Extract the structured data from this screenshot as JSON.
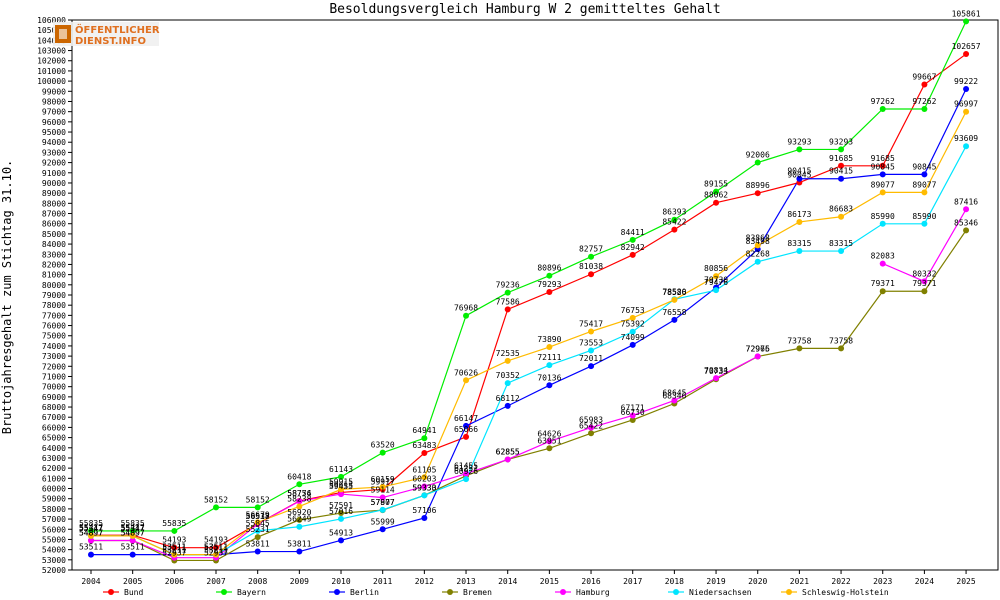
{
  "logo": {
    "line1": "ÖFFENTLICHER",
    "line2": "DIENST.INFO"
  },
  "chart_data": {
    "type": "line",
    "title": "Besoldungsvergleich Hamburg W 2 gemitteltes Gehalt",
    "xlabel": "",
    "ylabel": "Bruttojahresgehalt zum Stichtag 31.10.",
    "ylim": [
      52000,
      106000
    ],
    "ytick_step": 1000,
    "grid": false,
    "legend": "bottom",
    "categories": [
      "2004",
      "2005",
      "2006",
      "2007",
      "2008",
      "2009",
      "2010",
      "2011",
      "2012",
      "2013",
      "2014",
      "2015",
      "2016",
      "2017",
      "2018",
      "2019",
      "2020",
      "2021",
      "2022",
      "2023",
      "2024",
      "2025"
    ],
    "series": [
      {
        "name": "Bund",
        "color": "#ff0000",
        "values": [
          55417,
          55417,
          54193,
          54193,
          56538,
          58776,
          59613,
          59917,
          63483,
          65066,
          77586,
          79293,
          81038,
          82942,
          85422,
          88062,
          88996,
          90045,
          91685,
          91685,
          99667,
          102657
        ]
      },
      {
        "name": "Bayern",
        "color": "#00ee00",
        "values": [
          55835,
          55835,
          55835,
          58152,
          58152,
          60418,
          61143,
          63520,
          64941,
          76968,
          79236,
          80896,
          82757,
          84411,
          86393,
          89155,
          92006,
          93293,
          93293,
          97262,
          97262,
          105861
        ]
      },
      {
        "name": "Berlin",
        "color": "#0000ff",
        "values": [
          53511,
          53511,
          53511,
          53511,
          53811,
          53811,
          54913,
          55999,
          57106,
          66147,
          68112,
          70136,
          72011,
          74099,
          76558,
          79730,
          83498,
          90415,
          90415,
          90845,
          90845,
          99222
        ]
      },
      {
        "name": "Bremen",
        "color": "#808000",
        "values": [
          54897,
          54897,
          52937,
          52937,
          55231,
          56920,
          57591,
          57877,
          59333,
          61251,
          62855,
          63951,
          65422,
          66730,
          68346,
          70733,
          72965,
          73758,
          73758,
          79371,
          79371,
          85346
        ]
      },
      {
        "name": "Hamburg",
        "color": "#ff00ff",
        "values": [
          54897,
          54897,
          53211,
          53211,
          56517,
          58754,
          59455,
          59114,
          60203,
          61455,
          62855,
          64626,
          65983,
          67171,
          68645,
          70834,
          72976,
          null,
          null,
          82083,
          80332,
          87416
        ]
      },
      {
        "name": "Niedersachsen",
        "color": "#00e5ff",
        "values": [
          55347,
          55347,
          53511,
          53511,
          55845,
          56249,
          57016,
          57907,
          59330,
          60926,
          70352,
          72111,
          73553,
          75392,
          78580,
          79476,
          82268,
          83315,
          83315,
          85990,
          85990,
          93609
        ]
      },
      {
        "name": "Schleswig-Holstein",
        "color": "#ffbb00",
        "values": [
          55347,
          55347,
          53511,
          53511,
          56679,
          58238,
          59915,
          60159,
          61105,
          70626,
          72535,
          73890,
          75417,
          76753,
          78526,
          80856,
          83868,
          86173,
          86683,
          89077,
          89077,
          96997
        ]
      }
    ]
  }
}
